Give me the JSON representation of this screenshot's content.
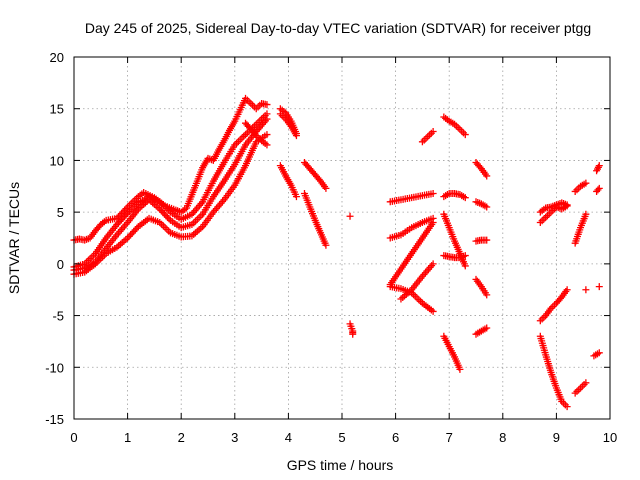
{
  "chart_data": {
    "type": "scatter",
    "title": "Day 245 of 2025, Sidereal Day-to-day VTEC variation (SDTVAR) for receiver ptgg",
    "xlabel": "GPS time / hours",
    "ylabel": "SDTVAR / TECUs",
    "xlim": [
      0,
      10
    ],
    "ylim": [
      -15,
      20
    ],
    "xticks": [
      "0",
      "1",
      "2",
      "3",
      "4",
      "5",
      "6",
      "7",
      "8",
      "9",
      "10"
    ],
    "yticks": [
      "-15",
      "-10",
      "-5",
      "0",
      "5",
      "10",
      "15",
      "20"
    ],
    "grid": true,
    "marker": "+",
    "color": "#ff0000",
    "series": [
      {
        "x": [
          0.0,
          0.1,
          0.2,
          0.3,
          0.4,
          0.5,
          0.6,
          0.8,
          1.0,
          1.2,
          1.3,
          1.5,
          1.7,
          1.9,
          2.0,
          2.1,
          2.2,
          2.3,
          2.4,
          2.5,
          2.6,
          2.7,
          2.8,
          2.9,
          3.0,
          3.1,
          3.2,
          3.3,
          3.4,
          3.5,
          3.6
        ],
        "y": [
          2.3,
          2.4,
          2.3,
          2.5,
          3.2,
          3.8,
          4.2,
          4.4,
          5.5,
          6.5,
          6.9,
          6.4,
          5.6,
          5.2,
          5.0,
          5.4,
          6.7,
          8.0,
          9.3,
          10.2,
          10.0,
          11.0,
          11.9,
          12.9,
          13.8,
          14.9,
          16.0,
          15.5,
          15.0,
          15.5,
          15.4
        ]
      },
      {
        "x": [
          0.0,
          0.2,
          0.4,
          0.6,
          0.8,
          1.0,
          1.2,
          1.4,
          1.6,
          1.8,
          2.0,
          2.2,
          2.4,
          2.6,
          2.8,
          3.0,
          3.2,
          3.4,
          3.6
        ],
        "y": [
          -0.3,
          0.0,
          1.0,
          2.5,
          3.8,
          4.9,
          5.9,
          6.5,
          6.0,
          5.0,
          4.3,
          4.8,
          6.0,
          8.0,
          9.8,
          11.5,
          12.5,
          13.5,
          14.5
        ]
      },
      {
        "x": [
          0.0,
          0.2,
          0.4,
          0.6,
          0.8,
          1.0,
          1.2,
          1.4,
          1.6,
          1.8,
          2.0,
          2.2,
          2.4,
          2.6,
          2.8,
          3.0,
          3.2,
          3.4,
          3.6
        ],
        "y": [
          -0.6,
          -0.4,
          0.2,
          1.5,
          2.8,
          4.0,
          5.3,
          6.2,
          5.3,
          4.2,
          3.5,
          3.8,
          4.8,
          6.5,
          8.0,
          9.6,
          11.5,
          12.8,
          14.0
        ]
      },
      {
        "x": [
          0.0,
          0.2,
          0.4,
          0.6,
          0.8,
          1.0,
          1.2,
          1.4,
          1.6,
          1.8,
          2.0,
          2.2,
          2.4,
          2.6,
          2.8,
          3.0,
          3.2,
          3.4,
          3.6
        ],
        "y": [
          -1.0,
          -0.8,
          0.0,
          1.0,
          1.6,
          2.5,
          3.6,
          4.4,
          4.0,
          3.0,
          2.6,
          2.7,
          3.6,
          5.0,
          6.2,
          7.6,
          9.5,
          11.8,
          12.5
        ]
      },
      {
        "x": [
          3.2,
          3.3,
          3.4,
          3.5,
          3.6
        ],
        "y": [
          13.6,
          13.0,
          12.4,
          11.9,
          11.5
        ]
      },
      {
        "x": [
          3.85,
          3.95,
          4.05,
          4.15
        ],
        "y": [
          15.0,
          14.6,
          13.8,
          12.6
        ]
      },
      {
        "x": [
          3.85,
          3.95,
          4.05,
          4.15
        ],
        "y": [
          14.5,
          14.0,
          13.3,
          12.4
        ]
      },
      {
        "x": [
          3.85,
          3.95,
          4.05,
          4.15
        ],
        "y": [
          9.5,
          8.5,
          7.6,
          6.5
        ]
      },
      {
        "x": [
          4.3,
          4.4,
          4.5,
          4.6,
          4.7
        ],
        "y": [
          9.8,
          9.2,
          8.6,
          8.0,
          7.3
        ]
      },
      {
        "x": [
          4.3,
          4.4,
          4.5,
          4.6,
          4.7
        ],
        "y": [
          6.8,
          5.5,
          4.2,
          3.0,
          1.8
        ]
      },
      {
        "x": [
          5.15
        ],
        "y": [
          4.6
        ]
      },
      {
        "x": [
          5.15,
          5.2,
          5.2
        ],
        "y": [
          -5.8,
          -6.5,
          -6.8
        ]
      },
      {
        "x": [
          5.9,
          6.1,
          6.3,
          6.5,
          6.7
        ],
        "y": [
          6.0,
          6.2,
          6.4,
          6.6,
          6.8
        ]
      },
      {
        "x": [
          5.9,
          6.1,
          6.3,
          6.5,
          6.7
        ],
        "y": [
          2.5,
          2.8,
          3.5,
          4.0,
          4.4
        ]
      },
      {
        "x": [
          5.9,
          6.1,
          6.3,
          6.5,
          6.7
        ],
        "y": [
          -2.0,
          -0.5,
          1.0,
          2.5,
          4.0
        ]
      },
      {
        "x": [
          5.9,
          6.1,
          6.3,
          6.5,
          6.7
        ],
        "y": [
          -2.2,
          -2.4,
          -2.8,
          -3.8,
          -4.6
        ]
      },
      {
        "x": [
          6.1,
          6.3,
          6.5,
          6.7
        ],
        "y": [
          -3.4,
          -2.5,
          -1.2,
          0.0
        ]
      },
      {
        "x": [
          6.5,
          6.6,
          6.7
        ],
        "y": [
          11.8,
          12.3,
          12.8
        ]
      },
      {
        "x": [
          6.9,
          7.0,
          7.1,
          7.2,
          7.3
        ],
        "y": [
          14.2,
          13.8,
          13.5,
          13.0,
          12.5
        ]
      },
      {
        "x": [
          6.9,
          7.0,
          7.1,
          7.2,
          7.3
        ],
        "y": [
          6.5,
          6.8,
          6.8,
          6.7,
          6.4
        ]
      },
      {
        "x": [
          6.9,
          7.0,
          7.1,
          7.2,
          7.3
        ],
        "y": [
          4.8,
          3.5,
          2.2,
          1.0,
          -0.2
        ]
      },
      {
        "x": [
          6.9,
          7.0,
          7.1,
          7.2,
          7.3
        ],
        "y": [
          0.8,
          0.7,
          0.6,
          0.6,
          0.8
        ]
      },
      {
        "x": [
          6.9,
          7.0,
          7.1,
          7.2
        ],
        "y": [
          -7.0,
          -8.0,
          -9.0,
          -10.2
        ]
      },
      {
        "x": [
          7.5,
          7.6,
          7.7
        ],
        "y": [
          9.8,
          9.2,
          8.5
        ]
      },
      {
        "x": [
          7.5,
          7.6,
          7.7
        ],
        "y": [
          6.0,
          5.8,
          5.5
        ]
      },
      {
        "x": [
          7.5,
          7.6,
          7.7
        ],
        "y": [
          2.2,
          2.3,
          2.3
        ]
      },
      {
        "x": [
          7.5,
          7.6,
          7.7
        ],
        "y": [
          -1.5,
          -2.2,
          -3.0
        ]
      },
      {
        "x": [
          7.5,
          7.6,
          7.7
        ],
        "y": [
          -6.8,
          -6.5,
          -6.2
        ]
      },
      {
        "x": [
          8.7,
          8.8,
          8.9,
          9.0,
          9.1,
          9.2
        ],
        "y": [
          5.0,
          5.4,
          5.5,
          5.7,
          5.9,
          5.7
        ]
      },
      {
        "x": [
          8.7,
          8.8,
          8.9,
          9.0,
          9.1,
          9.2
        ],
        "y": [
          4.0,
          4.5,
          5.0,
          5.5,
          5.3,
          5.6
        ]
      },
      {
        "x": [
          8.7,
          8.8,
          8.9,
          9.0,
          9.1,
          9.2
        ],
        "y": [
          -5.5,
          -5.0,
          -4.3,
          -3.8,
          -3.2,
          -2.5
        ]
      },
      {
        "x": [
          8.7,
          8.8,
          8.9,
          9.0,
          9.1,
          9.2
        ],
        "y": [
          -7.0,
          -8.8,
          -10.5,
          -12.0,
          -13.3,
          -13.8
        ]
      },
      {
        "x": [
          9.35,
          9.45,
          9.55
        ],
        "y": [
          7.0,
          7.5,
          7.8
        ]
      },
      {
        "x": [
          9.35,
          9.45,
          9.55
        ],
        "y": [
          2.0,
          3.5,
          4.8
        ]
      },
      {
        "x": [
          9.55
        ],
        "y": [
          -2.5
        ]
      },
      {
        "x": [
          9.35,
          9.45,
          9.55
        ],
        "y": [
          -12.5,
          -12.0,
          -11.5
        ]
      },
      {
        "x": [
          9.75,
          9.8
        ],
        "y": [
          9.0,
          9.5
        ]
      },
      {
        "x": [
          9.75,
          9.8
        ],
        "y": [
          7.0,
          7.3
        ]
      },
      {
        "x": [
          9.8
        ],
        "y": [
          -2.2
        ]
      },
      {
        "x": [
          9.7,
          9.8
        ],
        "y": [
          -8.9,
          -8.6
        ]
      }
    ]
  }
}
